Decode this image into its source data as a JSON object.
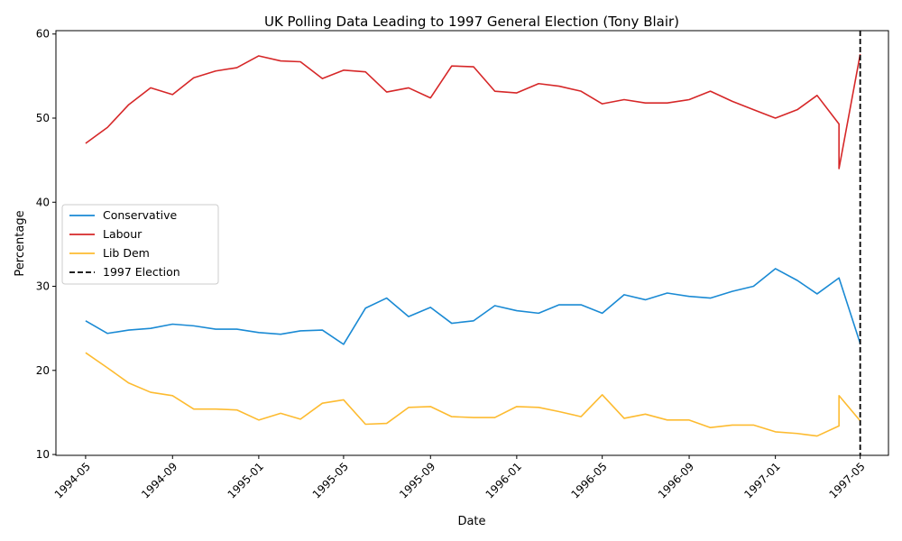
{
  "chart_data": {
    "type": "line",
    "title": "UK Polling Data Leading to 1997 General Election (Tony Blair)",
    "xlabel": "Date",
    "ylabel": "Percentage",
    "x_ticks": [
      "1994-05",
      "1994-09",
      "1995-01",
      "1995-05",
      "1995-09",
      "1996-01",
      "1996-05",
      "1996-09",
      "1997-01",
      "1997-05"
    ],
    "y_ticks": [
      10,
      20,
      30,
      40,
      50,
      60
    ],
    "xlim": [
      "1994-03-20",
      "1997-06-10"
    ],
    "ylim": [
      9.9,
      60.4
    ],
    "x": [
      "1994-05-01",
      "1994-06-01",
      "1994-07-01",
      "1994-08-01",
      "1994-09-01",
      "1994-10-01",
      "1994-11-01",
      "1994-12-01",
      "1995-01-01",
      "1995-02-01",
      "1995-03-01",
      "1995-04-01",
      "1995-05-01",
      "1995-06-01",
      "1995-07-01",
      "1995-08-01",
      "1995-09-01",
      "1995-10-01",
      "1995-11-01",
      "1995-12-01",
      "1996-01-01",
      "1996-02-01",
      "1996-03-01",
      "1996-04-01",
      "1996-05-01",
      "1996-06-01",
      "1996-07-01",
      "1996-08-01",
      "1996-09-01",
      "1996-10-01",
      "1996-11-01",
      "1996-12-01",
      "1997-01-01",
      "1997-02-01",
      "1997-03-01",
      "1997-04-01",
      "1997-04-01",
      "1997-05-01"
    ],
    "series": [
      {
        "name": "Conservative",
        "color": "#1a8ad4",
        "values": [
          25.9,
          24.4,
          24.8,
          25.0,
          25.5,
          25.3,
          24.9,
          24.9,
          24.5,
          24.3,
          24.7,
          24.8,
          23.1,
          27.4,
          28.6,
          26.4,
          27.5,
          25.6,
          25.9,
          27.7,
          27.1,
          26.8,
          27.8,
          27.8,
          26.8,
          29.0,
          28.4,
          29.2,
          28.8,
          28.6,
          29.4,
          30.0,
          32.1,
          30.7,
          29.1,
          31.0,
          31.0,
          23.2
        ]
      },
      {
        "name": "Labour",
        "color": "#d62728",
        "values": [
          47.0,
          48.9,
          51.6,
          53.6,
          52.8,
          54.8,
          55.6,
          56.0,
          57.4,
          56.8,
          56.7,
          54.7,
          55.7,
          55.5,
          53.1,
          53.6,
          52.4,
          56.2,
          56.1,
          53.2,
          53.0,
          54.1,
          53.8,
          53.2,
          51.7,
          52.2,
          51.8,
          51.8,
          52.2,
          53.2,
          52.0,
          51.0,
          50.0,
          51.0,
          52.7,
          49.3,
          44.0,
          57.6
        ]
      },
      {
        "name": "Lib Dem",
        "color": "#fdbb30",
        "values": [
          22.1,
          20.3,
          18.5,
          17.4,
          17.0,
          15.4,
          15.4,
          15.3,
          14.1,
          14.9,
          14.2,
          16.1,
          16.5,
          13.6,
          13.7,
          15.6,
          15.7,
          14.5,
          14.4,
          14.4,
          15.7,
          15.6,
          15.1,
          14.5,
          17.1,
          14.3,
          14.8,
          14.1,
          14.1,
          13.2,
          13.5,
          13.5,
          12.7,
          12.5,
          12.2,
          13.4,
          17.0,
          14.0
        ]
      }
    ],
    "reference_line": {
      "name": "1997 Election",
      "x": "1997-05-01",
      "color": "#000000",
      "style": "dashed"
    },
    "legend": [
      "Conservative",
      "Labour",
      "Lib Dem",
      "1997 Election"
    ],
    "legend_position": "center-left",
    "grid": false
  }
}
